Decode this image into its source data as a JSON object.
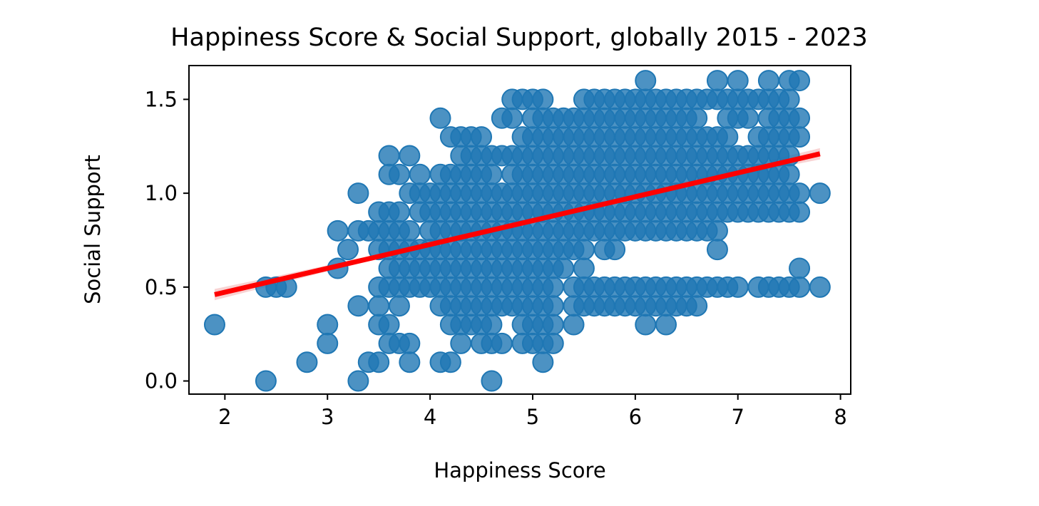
{
  "chart_data": {
    "type": "scatter",
    "title": "Happiness Score & Social Support, globally 2015 - 2023",
    "xlabel": "Happiness Score",
    "ylabel": "Social Support",
    "xlim": [
      1.65,
      8.1
    ],
    "ylim": [
      -0.07,
      1.68
    ],
    "xticks": [
      2,
      3,
      4,
      5,
      6,
      7,
      8
    ],
    "xtick_labels": [
      "2",
      "3",
      "4",
      "5",
      "6",
      "7",
      "8"
    ],
    "yticks": [
      0.0,
      0.5,
      1.0,
      1.5
    ],
    "ytick_labels": [
      "0.0",
      "0.5",
      "1.0",
      "1.5"
    ],
    "grid": false,
    "colors": {
      "points": "#1f77b4",
      "regression_line": "#ff0000",
      "confidence_band": "#f4b6b6"
    },
    "regression": {
      "x": [
        1.9,
        7.8
      ],
      "y": [
        0.46,
        1.21
      ]
    },
    "confidence_band": {
      "x": [
        1.9,
        3.0,
        4.0,
        5.0,
        6.0,
        7.0,
        7.8
      ],
      "lower": [
        0.43,
        0.584,
        0.722,
        0.855,
        0.982,
        1.095,
        1.18
      ],
      "upper": [
        0.49,
        0.616,
        0.738,
        0.865,
        0.998,
        1.135,
        1.24
      ]
    },
    "point_groups": [
      {
        "y": 1.6,
        "x": [
          6.1,
          6.8,
          7.0,
          7.3,
          7.5,
          7.6
        ]
      },
      {
        "y": 1.5,
        "x": [
          4.8,
          4.9,
          5.0,
          5.1,
          5.5,
          5.6,
          5.7,
          5.8,
          5.9,
          6.0,
          6.1,
          6.2,
          6.3,
          6.4,
          6.5,
          6.6,
          6.7,
          6.8,
          6.9,
          7.0,
          7.1,
          7.2,
          7.3,
          7.4,
          7.5
        ]
      },
      {
        "y": 1.4,
        "x": [
          4.1,
          4.7,
          4.8,
          5.0,
          5.1,
          5.2,
          5.3,
          5.4,
          5.5,
          5.6,
          5.7,
          5.8,
          5.9,
          6.0,
          6.1,
          6.2,
          6.3,
          6.4,
          6.5,
          6.6,
          6.9,
          7.0,
          7.1,
          7.3,
          7.4,
          7.5,
          7.6
        ]
      },
      {
        "y": 1.3,
        "x": [
          4.2,
          4.3,
          4.4,
          4.5,
          4.9,
          5.0,
          5.1,
          5.2,
          5.3,
          5.4,
          5.5,
          5.6,
          5.7,
          5.8,
          5.9,
          6.0,
          6.1,
          6.2,
          6.3,
          6.4,
          6.5,
          6.6,
          6.7,
          6.8,
          6.9,
          7.2,
          7.3,
          7.4,
          7.5,
          7.6
        ]
      },
      {
        "y": 1.2,
        "x": [
          3.6,
          3.8,
          4.3,
          4.4,
          4.5,
          4.6,
          4.7,
          4.8,
          4.9,
          5.0,
          5.1,
          5.2,
          5.3,
          5.4,
          5.5,
          5.6,
          5.7,
          5.8,
          5.9,
          6.0,
          6.1,
          6.2,
          6.3,
          6.4,
          6.5,
          6.6,
          6.7,
          6.8,
          6.9,
          7.0,
          7.1,
          7.2,
          7.3,
          7.4,
          7.5
        ]
      },
      {
        "y": 1.1,
        "x": [
          3.6,
          3.7,
          3.9,
          4.1,
          4.2,
          4.3,
          4.4,
          4.5,
          4.6,
          4.8,
          4.9,
          5.0,
          5.1,
          5.2,
          5.3,
          5.4,
          5.5,
          5.6,
          5.7,
          5.8,
          5.9,
          6.0,
          6.1,
          6.2,
          6.3,
          6.4,
          6.5,
          6.6,
          6.7,
          6.8,
          6.9,
          7.0,
          7.1,
          7.2,
          7.3,
          7.4,
          7.5
        ]
      },
      {
        "y": 1.0,
        "x": [
          3.3,
          3.8,
          3.9,
          4.0,
          4.1,
          4.2,
          4.3,
          4.4,
          4.5,
          4.6,
          4.7,
          4.8,
          4.9,
          5.0,
          5.1,
          5.2,
          5.3,
          5.4,
          5.5,
          5.6,
          5.7,
          5.8,
          5.9,
          6.0,
          6.1,
          6.2,
          6.3,
          6.4,
          6.5,
          6.6,
          6.7,
          6.8,
          6.9,
          7.0,
          7.1,
          7.2,
          7.3,
          7.4,
          7.5,
          7.6,
          7.8
        ]
      },
      {
        "y": 0.9,
        "x": [
          3.5,
          3.6,
          3.7,
          3.9,
          4.0,
          4.1,
          4.2,
          4.3,
          4.4,
          4.5,
          4.6,
          4.7,
          4.8,
          4.9,
          5.0,
          5.1,
          5.2,
          5.3,
          5.4,
          5.5,
          5.6,
          5.7,
          5.8,
          5.9,
          6.0,
          6.1,
          6.2,
          6.3,
          6.4,
          6.5,
          6.6,
          6.7,
          6.8,
          6.9,
          7.0,
          7.1,
          7.2,
          7.3,
          7.4,
          7.5,
          7.6
        ]
      },
      {
        "y": 0.8,
        "x": [
          3.1,
          3.3,
          3.4,
          3.5,
          3.6,
          3.7,
          3.8,
          4.0,
          4.1,
          4.2,
          4.3,
          4.4,
          4.5,
          4.6,
          4.7,
          4.8,
          4.9,
          5.0,
          5.1,
          5.2,
          5.3,
          5.4,
          5.5,
          5.6,
          5.7,
          5.8,
          5.9,
          6.0,
          6.1,
          6.2,
          6.3,
          6.4,
          6.5,
          6.6,
          6.7,
          6.8
        ]
      },
      {
        "y": 0.7,
        "x": [
          3.2,
          3.5,
          3.6,
          3.7,
          3.8,
          3.9,
          4.0,
          4.1,
          4.2,
          4.3,
          4.4,
          4.5,
          4.6,
          4.7,
          4.8,
          4.9,
          5.0,
          5.1,
          5.2,
          5.3,
          5.4,
          5.5,
          5.7,
          5.8,
          6.8
        ]
      },
      {
        "y": 0.6,
        "x": [
          3.1,
          3.6,
          3.7,
          3.8,
          3.9,
          4.0,
          4.1,
          4.2,
          4.3,
          4.4,
          4.5,
          4.6,
          4.7,
          4.8,
          4.9,
          5.0,
          5.1,
          5.2,
          5.3,
          5.5,
          7.6
        ]
      },
      {
        "y": 0.5,
        "x": [
          2.4,
          2.5,
          2.6,
          3.5,
          3.6,
          3.7,
          3.8,
          3.9,
          4.0,
          4.1,
          4.2,
          4.3,
          4.4,
          4.5,
          4.6,
          4.7,
          4.8,
          4.9,
          5.0,
          5.1,
          5.2,
          5.4,
          5.5,
          5.6,
          5.7,
          5.8,
          5.9,
          6.0,
          6.1,
          6.2,
          6.3,
          6.4,
          6.5,
          6.6,
          6.7,
          6.8,
          6.9,
          7.0,
          7.2,
          7.3,
          7.4,
          7.5,
          7.6,
          7.8
        ]
      },
      {
        "y": 0.4,
        "x": [
          3.3,
          3.5,
          3.7,
          4.1,
          4.2,
          4.3,
          4.4,
          4.5,
          4.6,
          4.7,
          4.8,
          4.9,
          5.0,
          5.1,
          5.2,
          5.4,
          5.5,
          5.6,
          5.7,
          5.8,
          5.9,
          6.0,
          6.1,
          6.2,
          6.3,
          6.4,
          6.5,
          6.6
        ]
      },
      {
        "y": 0.3,
        "x": [
          1.9,
          3.0,
          3.5,
          3.6,
          4.2,
          4.3,
          4.4,
          4.5,
          4.6,
          4.9,
          5.0,
          5.1,
          5.2,
          5.4,
          6.1,
          6.3
        ]
      },
      {
        "y": 0.2,
        "x": [
          3.0,
          3.6,
          3.7,
          3.8,
          4.3,
          4.5,
          4.6,
          4.7,
          4.9,
          5.0,
          5.1,
          5.2
        ]
      },
      {
        "y": 0.1,
        "x": [
          2.8,
          3.4,
          3.5,
          3.8,
          4.1,
          4.2,
          5.1
        ]
      },
      {
        "y": 0.0,
        "x": [
          2.4,
          3.3,
          4.6
        ]
      }
    ]
  }
}
